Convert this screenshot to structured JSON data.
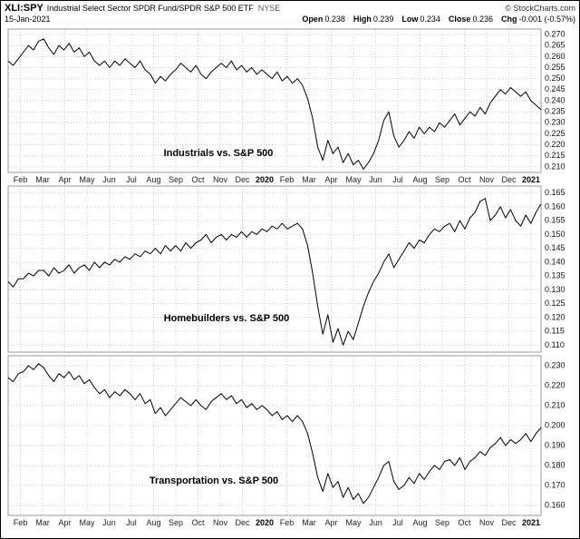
{
  "header": {
    "symbol": "XLI:SPY",
    "description": "Industrial Select Sector SPDR Fund/SPDR S&P 500 ETF",
    "exchange": "NYSE",
    "source": "© StockCharts.com",
    "date": "15-Jan-2021",
    "quote": {
      "pairs": [
        {
          "label": "Open",
          "value": "0.238"
        },
        {
          "label": "High",
          "value": "0.239"
        },
        {
          "label": "Low",
          "value": "0.234"
        },
        {
          "label": "Close",
          "value": "0.236"
        },
        {
          "label": "Chg",
          "value": "-0.001 (-0.57%)"
        }
      ]
    }
  },
  "chart_data": {
    "type": "line",
    "x_labels": [
      "Feb",
      "Mar",
      "Apr",
      "May",
      "Jun",
      "Jul",
      "Aug",
      "Sep",
      "Oct",
      "Nov",
      "Dec",
      "2020",
      "Feb",
      "Mar",
      "Apr",
      "May",
      "Jun",
      "Jul",
      "Aug",
      "Sep",
      "Oct",
      "Nov",
      "Dec",
      "2021"
    ],
    "x_range": "mid-Jan 2019 to mid-Jan 2021",
    "grid": true,
    "line_color": "#000000",
    "panels": [
      {
        "title": "Industrials vs. S&P 500",
        "ylim": [
          0.2075,
          0.2725
        ],
        "yticks": [
          0.21,
          0.215,
          0.22,
          0.225,
          0.23,
          0.235,
          0.24,
          0.245,
          0.25,
          0.255,
          0.26,
          0.265,
          0.27
        ],
        "title_x": 0.395,
        "title_y": 0.88,
        "values": [
          0.258,
          0.256,
          0.259,
          0.262,
          0.265,
          0.263,
          0.267,
          0.268,
          0.264,
          0.261,
          0.265,
          0.263,
          0.266,
          0.262,
          0.264,
          0.26,
          0.262,
          0.258,
          0.256,
          0.258,
          0.255,
          0.258,
          0.256,
          0.259,
          0.257,
          0.255,
          0.258,
          0.254,
          0.252,
          0.248,
          0.251,
          0.249,
          0.252,
          0.254,
          0.257,
          0.255,
          0.253,
          0.256,
          0.252,
          0.25,
          0.253,
          0.255,
          0.257,
          0.255,
          0.258,
          0.254,
          0.256,
          0.253,
          0.255,
          0.252,
          0.254,
          0.252,
          0.25,
          0.253,
          0.249,
          0.251,
          0.248,
          0.25,
          0.247,
          0.241,
          0.232,
          0.219,
          0.213,
          0.222,
          0.216,
          0.219,
          0.212,
          0.216,
          0.211,
          0.213,
          0.209,
          0.212,
          0.216,
          0.222,
          0.231,
          0.235,
          0.224,
          0.219,
          0.222,
          0.226,
          0.223,
          0.228,
          0.225,
          0.228,
          0.226,
          0.23,
          0.228,
          0.231,
          0.234,
          0.229,
          0.232,
          0.235,
          0.233,
          0.237,
          0.234,
          0.239,
          0.242,
          0.245,
          0.243,
          0.246,
          0.244,
          0.242,
          0.244,
          0.24,
          0.238,
          0.236
        ]
      },
      {
        "title": "Homebuilders vs. S&P 500",
        "ylim": [
          0.1075,
          0.1675
        ],
        "yticks": [
          0.11,
          0.115,
          0.12,
          0.125,
          0.13,
          0.135,
          0.14,
          0.145,
          0.15,
          0.155,
          0.16,
          0.165
        ],
        "title_x": 0.41,
        "title_y": 0.81,
        "values": [
          0.133,
          0.131,
          0.134,
          0.134,
          0.136,
          0.135,
          0.137,
          0.137,
          0.135,
          0.138,
          0.136,
          0.137,
          0.139,
          0.136,
          0.138,
          0.139,
          0.137,
          0.14,
          0.138,
          0.14,
          0.139,
          0.141,
          0.14,
          0.142,
          0.141,
          0.143,
          0.142,
          0.144,
          0.143,
          0.145,
          0.143,
          0.146,
          0.144,
          0.146,
          0.144,
          0.147,
          0.145,
          0.147,
          0.148,
          0.15,
          0.147,
          0.149,
          0.15,
          0.148,
          0.15,
          0.149,
          0.151,
          0.149,
          0.151,
          0.15,
          0.152,
          0.151,
          0.153,
          0.152,
          0.154,
          0.152,
          0.153,
          0.154,
          0.152,
          0.146,
          0.136,
          0.124,
          0.114,
          0.121,
          0.111,
          0.116,
          0.11,
          0.115,
          0.112,
          0.118,
          0.124,
          0.129,
          0.133,
          0.136,
          0.14,
          0.143,
          0.138,
          0.141,
          0.144,
          0.147,
          0.145,
          0.148,
          0.147,
          0.15,
          0.152,
          0.151,
          0.153,
          0.154,
          0.151,
          0.155,
          0.152,
          0.156,
          0.158,
          0.162,
          0.163,
          0.155,
          0.157,
          0.16,
          0.156,
          0.159,
          0.155,
          0.153,
          0.157,
          0.154,
          0.158,
          0.161
        ]
      },
      {
        "title": "Transportation vs. S&P 500",
        "ylim": [
          0.155,
          0.235
        ],
        "yticks": [
          0.16,
          0.17,
          0.18,
          0.19,
          0.2,
          0.21,
          0.22,
          0.23
        ],
        "title_x": 0.386,
        "title_y": 0.8,
        "values": [
          0.224,
          0.222,
          0.226,
          0.227,
          0.23,
          0.228,
          0.231,
          0.229,
          0.225,
          0.222,
          0.226,
          0.224,
          0.227,
          0.223,
          0.225,
          0.221,
          0.223,
          0.219,
          0.216,
          0.218,
          0.214,
          0.217,
          0.215,
          0.218,
          0.216,
          0.213,
          0.216,
          0.211,
          0.213,
          0.206,
          0.209,
          0.205,
          0.208,
          0.211,
          0.214,
          0.212,
          0.21,
          0.213,
          0.21,
          0.208,
          0.212,
          0.214,
          0.216,
          0.213,
          0.215,
          0.211,
          0.213,
          0.209,
          0.211,
          0.208,
          0.21,
          0.208,
          0.205,
          0.207,
          0.203,
          0.205,
          0.202,
          0.205,
          0.202,
          0.196,
          0.186,
          0.174,
          0.167,
          0.176,
          0.169,
          0.172,
          0.164,
          0.169,
          0.163,
          0.166,
          0.161,
          0.164,
          0.169,
          0.174,
          0.18,
          0.182,
          0.172,
          0.168,
          0.17,
          0.174,
          0.171,
          0.176,
          0.173,
          0.177,
          0.18,
          0.178,
          0.182,
          0.183,
          0.18,
          0.184,
          0.178,
          0.182,
          0.184,
          0.187,
          0.185,
          0.189,
          0.191,
          0.194,
          0.19,
          0.193,
          0.191,
          0.193,
          0.196,
          0.192,
          0.196,
          0.199
        ]
      }
    ]
  }
}
